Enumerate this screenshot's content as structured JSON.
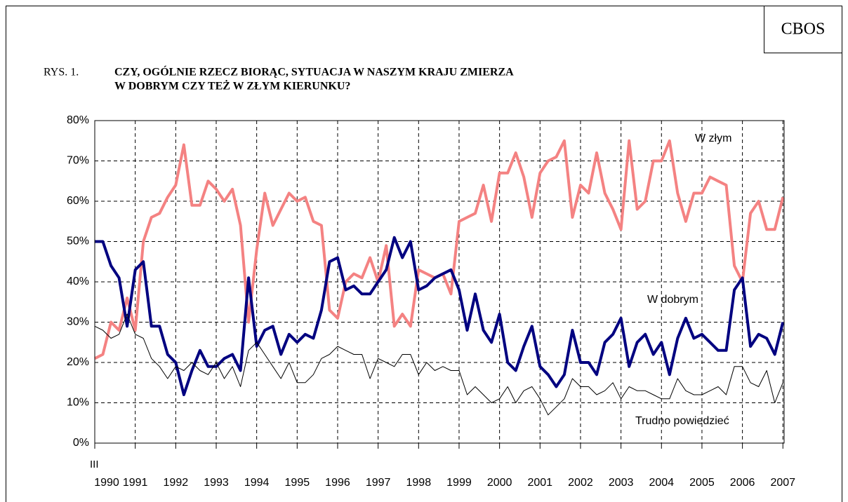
{
  "chart_data": {
    "type": "line",
    "source": "CBOS",
    "figure_label": "RYS. 1.",
    "title": [
      "CZY, OGÓLNIE RZECZ BIORĄC, SYTUACJA W NASZYM KRAJU ZMIERZA",
      "W DOBRYM CZY TEŻ W ZŁYM KIERUNKU?"
    ],
    "x_start_label": "III",
    "x": [
      1990,
      1990.2,
      1990.4,
      1990.6,
      1990.8,
      1991,
      1991.2,
      1991.4,
      1991.6,
      1991.8,
      1992,
      1992.2,
      1992.4,
      1992.6,
      1992.8,
      1993,
      1993.2,
      1993.4,
      1993.6,
      1993.8,
      1994,
      1994.2,
      1994.4,
      1994.6,
      1994.8,
      1995,
      1995.2,
      1995.4,
      1995.6,
      1995.8,
      1996,
      1996.2,
      1996.4,
      1996.6,
      1996.8,
      1997,
      1997.2,
      1997.4,
      1997.6,
      1997.8,
      1998,
      1998.2,
      1998.4,
      1998.6,
      1998.8,
      1999,
      1999.2,
      1999.4,
      1999.6,
      1999.8,
      2000,
      2000.2,
      2000.4,
      2000.6,
      2000.8,
      2001,
      2001.2,
      2001.4,
      2001.6,
      2001.8,
      2002,
      2002.2,
      2002.4,
      2002.6,
      2002.8,
      2003,
      2003.2,
      2003.4,
      2003.6,
      2003.8,
      2004,
      2004.2,
      2004.4,
      2004.6,
      2004.8,
      2005,
      2005.2,
      2005.4,
      2005.6,
      2005.8,
      2006,
      2006.2,
      2006.4,
      2006.6,
      2006.8,
      2007
    ],
    "series": [
      {
        "name": "W złym",
        "color": "#f48282",
        "width": 4,
        "values": [
          21,
          22,
          30,
          28,
          36,
          28,
          50,
          56,
          57,
          61,
          64,
          74,
          59,
          59,
          65,
          63,
          60,
          63,
          54,
          30,
          48,
          62,
          54,
          58,
          62,
          60,
          61,
          55,
          54,
          33,
          31,
          40,
          42,
          41,
          46,
          40,
          49,
          29,
          32,
          29,
          43,
          42,
          41,
          42,
          37,
          55,
          56,
          57,
          64,
          55,
          67,
          67,
          72,
          66,
          56,
          67,
          70,
          71,
          75,
          56,
          64,
          62,
          72,
          62,
          58,
          53,
          75,
          58,
          60,
          70,
          70,
          75,
          62,
          55,
          62,
          62,
          66,
          65,
          64,
          44,
          40,
          57,
          60,
          53,
          53,
          61
        ]
      },
      {
        "name": "W dobrym",
        "color": "#000080",
        "width": 4,
        "values": [
          50,
          50,
          44,
          41,
          29,
          43,
          45,
          29,
          29,
          22,
          20,
          12,
          18,
          23,
          19,
          19,
          21,
          22,
          18,
          41,
          24,
          28,
          29,
          22,
          27,
          25,
          27,
          26,
          33,
          45,
          46,
          38,
          39,
          37,
          37,
          40,
          43,
          51,
          46,
          50,
          38,
          39,
          41,
          42,
          43,
          38,
          28,
          37,
          28,
          25,
          32,
          20,
          18,
          24,
          29,
          19,
          17,
          14,
          17,
          28,
          20,
          20,
          17,
          25,
          27,
          31,
          19,
          25,
          27,
          22,
          25,
          17,
          26,
          31,
          26,
          27,
          25,
          23,
          23,
          38,
          41,
          24,
          27,
          26,
          22,
          30
        ]
      },
      {
        "name": "Trudno powiedzieć",
        "color": "#000000",
        "width": 1,
        "values": [
          29,
          28,
          26,
          27,
          32,
          27,
          26,
          21,
          19,
          16,
          19,
          18,
          20,
          18,
          17,
          20,
          16,
          19,
          14,
          23,
          25,
          22,
          19,
          16,
          20,
          15,
          15,
          17,
          21,
          22,
          24,
          23,
          22,
          22,
          16,
          21,
          20,
          19,
          22,
          22,
          17,
          20,
          18,
          19,
          18,
          18,
          12,
          14,
          12,
          10,
          11,
          14,
          10,
          13,
          14,
          11,
          7,
          9,
          11,
          16,
          14,
          14,
          12,
          13,
          15,
          11,
          14,
          13,
          13,
          12,
          11,
          11,
          16,
          13,
          12,
          12,
          13,
          14,
          12,
          19,
          19,
          15,
          14,
          18,
          10,
          15
        ]
      }
    ],
    "xlim": [
      1990,
      2007.03
    ],
    "xticks": [
      1990,
      1991,
      1992,
      1993,
      1994,
      1995,
      1996,
      1997,
      1998,
      1999,
      2000,
      2001,
      2002,
      2003,
      2004,
      2005,
      2006,
      2007
    ],
    "ylim": [
      0,
      80
    ],
    "yticks": [
      {
        "value": 0,
        "label": "0%"
      },
      {
        "value": 10,
        "label": "10%"
      },
      {
        "value": 20,
        "label": "20%"
      },
      {
        "value": 30,
        "label": "30%"
      },
      {
        "value": 40,
        "label": "40%"
      },
      {
        "value": 50,
        "label": "50%"
      },
      {
        "value": 60,
        "label": "60%"
      },
      {
        "value": 70,
        "label": "70%"
      },
      {
        "value": 80,
        "label": "80%"
      }
    ],
    "grid": true
  }
}
